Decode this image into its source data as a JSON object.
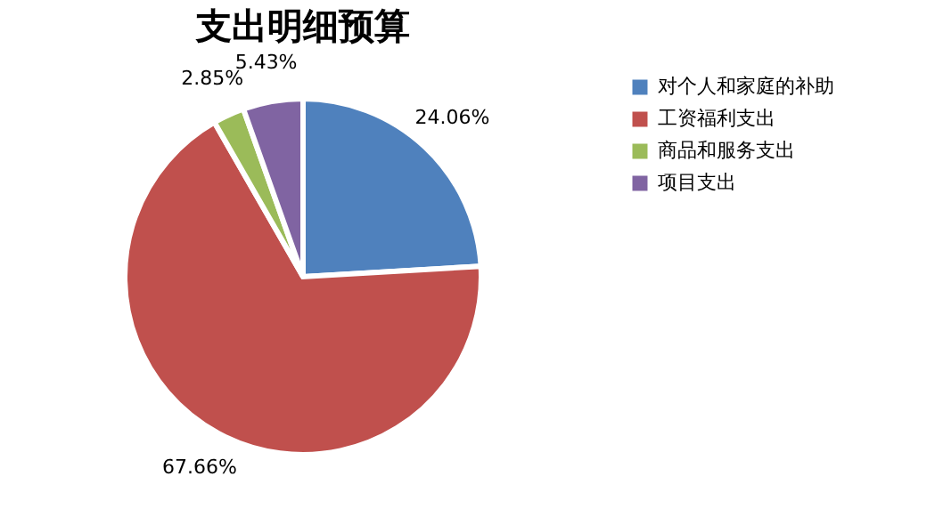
{
  "chart_data": {
    "type": "pie",
    "title": "支出明细预算",
    "categories": [
      "对个人和家庭的补助",
      "工资福利支出",
      "商品和服务支出",
      "项目支出"
    ],
    "values": [
      24.06,
      67.66,
      2.85,
      5.43
    ],
    "colors": [
      "#4f81bd",
      "#c0504d",
      "#9bbb59",
      "#8064a2"
    ],
    "value_labels": [
      "24.06%",
      "67.66%",
      "2.85%",
      "5.43%"
    ],
    "legend": "right"
  }
}
